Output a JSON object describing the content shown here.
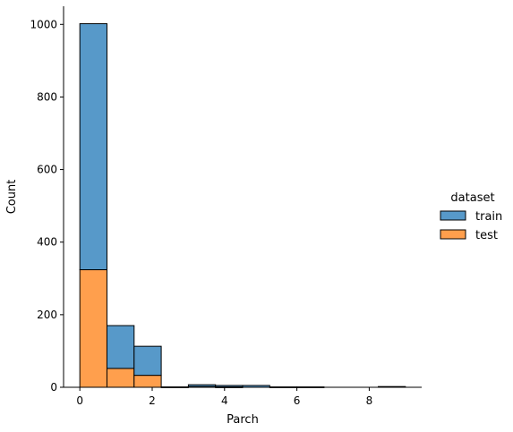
{
  "chart_data": {
    "type": "bar",
    "subtype": "stacked histogram",
    "xlabel": "Parch",
    "ylabel": "Count",
    "xlim": [
      -0.45,
      9.45
    ],
    "ylim": [
      0,
      1050
    ],
    "xticks": [
      0,
      2,
      4,
      6,
      8
    ],
    "yticks": [
      0,
      200,
      400,
      600,
      800,
      1000
    ],
    "grid": false,
    "legend": {
      "title": "dataset",
      "placement": "right",
      "entries": [
        {
          "name": "train",
          "color": "#5799c9"
        },
        {
          "name": "test",
          "color": "#ff9f4d"
        }
      ]
    },
    "bin_edges": [
      0,
      0.75,
      1.5,
      2.25,
      3.0,
      3.75,
      4.5,
      5.25,
      6.0,
      6.75,
      7.5,
      8.25,
      9.0
    ],
    "series": [
      {
        "name": "test",
        "color": "#ff9f4d",
        "values": [
          324,
          52,
          33,
          1,
          2,
          1,
          0,
          1,
          0,
          0,
          0,
          2
        ]
      },
      {
        "name": "train",
        "color": "#5799c9",
        "values": [
          678,
          118,
          80,
          0,
          5,
          4,
          5,
          0,
          1,
          0,
          0,
          0
        ]
      }
    ]
  }
}
